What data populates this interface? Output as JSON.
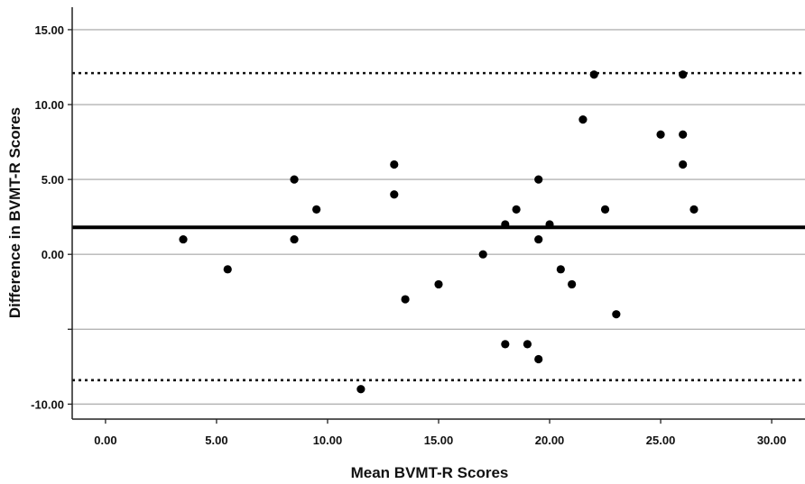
{
  "chart_data": {
    "type": "scatter",
    "title": "",
    "xlabel": "Mean BVMT-R Scores",
    "ylabel": "Difference in BVMT-R Scores",
    "xlim": [
      -1.5,
      31.5
    ],
    "ylim": [
      -11,
      16.5
    ],
    "x_ticks": [
      0,
      5,
      10,
      15,
      20,
      25,
      30
    ],
    "x_tick_labels": [
      "0.00",
      "5.00",
      "10.00",
      "15.00",
      "20.00",
      "25.00",
      "30.00"
    ],
    "y_gridlines": [
      -10,
      -5,
      0,
      5,
      10,
      15
    ],
    "y_ticks": [
      -10,
      0,
      5,
      10,
      15
    ],
    "y_tick_labels": [
      "-10.00",
      "0.00",
      "5.00",
      "10.00",
      "15.00"
    ],
    "grid": true,
    "reference_lines": {
      "mean_difference": 1.8,
      "upper_limit": 12.1,
      "lower_limit": -8.4
    },
    "points": [
      {
        "x": 3.5,
        "y": 1
      },
      {
        "x": 5.5,
        "y": -1
      },
      {
        "x": 8.5,
        "y": 5
      },
      {
        "x": 8.5,
        "y": 1
      },
      {
        "x": 9.5,
        "y": 3
      },
      {
        "x": 11.5,
        "y": -9
      },
      {
        "x": 13,
        "y": 6
      },
      {
        "x": 13,
        "y": 4
      },
      {
        "x": 13.5,
        "y": -3
      },
      {
        "x": 15,
        "y": -2
      },
      {
        "x": 17,
        "y": 0
      },
      {
        "x": 18,
        "y": 2
      },
      {
        "x": 18,
        "y": -6
      },
      {
        "x": 18.5,
        "y": 3
      },
      {
        "x": 19,
        "y": -6
      },
      {
        "x": 19.5,
        "y": 5
      },
      {
        "x": 19.5,
        "y": 1
      },
      {
        "x": 19.5,
        "y": -7
      },
      {
        "x": 20,
        "y": 2
      },
      {
        "x": 20.5,
        "y": -1
      },
      {
        "x": 21,
        "y": -2
      },
      {
        "x": 21.5,
        "y": 9
      },
      {
        "x": 22,
        "y": 12
      },
      {
        "x": 22.5,
        "y": 3
      },
      {
        "x": 23,
        "y": -4
      },
      {
        "x": 25,
        "y": 8
      },
      {
        "x": 26,
        "y": 12
      },
      {
        "x": 26,
        "y": 8
      },
      {
        "x": 26,
        "y": 6
      },
      {
        "x": 26.5,
        "y": 3
      }
    ]
  }
}
